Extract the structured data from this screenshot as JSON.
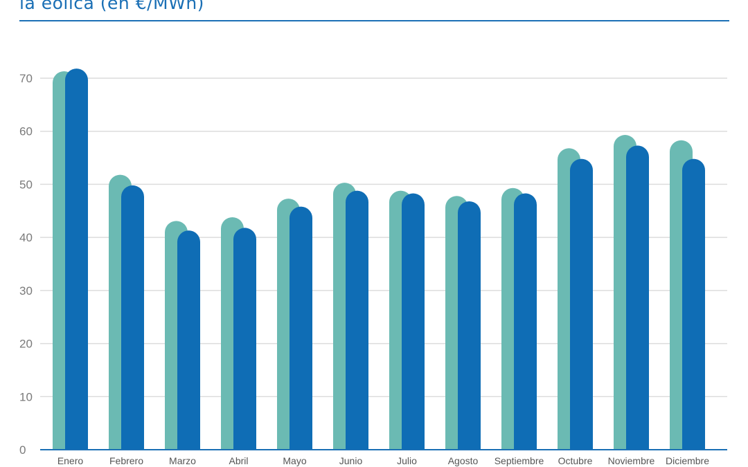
{
  "chart_data": {
    "type": "bar",
    "title": "la eólica (en €/MWh)",
    "categories": [
      "Enero",
      "Febrero",
      "Marzo",
      "Abril",
      "Mayo",
      "Junio",
      "Julio",
      "Agosto",
      "Septiembre",
      "Octubre",
      "Noviembre",
      "Diciembre"
    ],
    "series": [
      {
        "values": [
          70,
          50.5,
          41.8,
          42.5,
          46,
          49,
          47.5,
          46.5,
          48,
          55.5,
          58,
          57
        ],
        "color": "#6bbab3"
      },
      {
        "values": [
          70.5,
          48.5,
          40,
          40.5,
          44.5,
          47.5,
          47,
          45.5,
          47,
          53.5,
          56,
          53.5
        ],
        "color": "#0f6db5"
      }
    ],
    "ylim": [
      0,
      70
    ],
    "yticks": [
      0,
      10,
      20,
      30,
      40,
      50,
      60,
      70
    ],
    "grid": true,
    "axis_color": "#1a6fb5",
    "grid_color": "#dcdcdc"
  }
}
